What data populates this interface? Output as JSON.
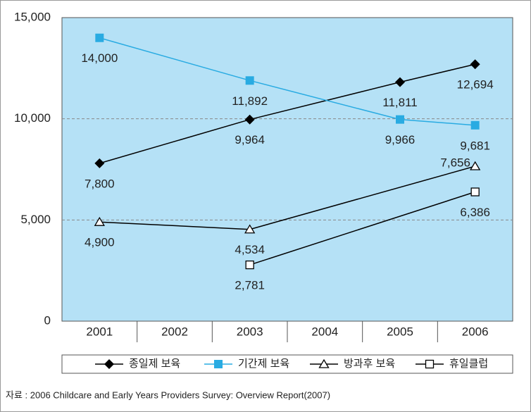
{
  "chart_data": {
    "type": "line",
    "xlim": [
      2000.5,
      2006.5
    ],
    "xticks": [
      2001,
      2002,
      2003,
      2004,
      2005,
      2006
    ],
    "ylim": [
      0,
      15000
    ],
    "yticks": [
      {
        "value": 0,
        "label": "0"
      },
      {
        "value": 5000,
        "label": "5,000"
      },
      {
        "value": 10000,
        "label": "10,000"
      },
      {
        "value": 15000,
        "label": "15,000"
      }
    ],
    "grid": true,
    "series": [
      {
        "name": "종일제 보육",
        "color": "#000000",
        "marker": "diamond",
        "x": [
          2001,
          2003,
          2005,
          2006
        ],
        "values": [
          7800,
          9964,
          11811,
          12694
        ],
        "value_labels": [
          "7,800",
          "9,964",
          "11,811",
          "12,694"
        ]
      },
      {
        "name": "기간제 보육",
        "color": "#29abe2",
        "marker": "square-filled",
        "x": [
          2001,
          2003,
          2005,
          2006
        ],
        "values": [
          14000,
          11892,
          9966,
          9681
        ],
        "value_labels": [
          "14,000",
          "11,892",
          "9,966",
          "9,681"
        ]
      },
      {
        "name": "방과후 보육",
        "color": "#000000",
        "marker": "triangle-open",
        "x": [
          2001,
          2003,
          2006
        ],
        "values": [
          4900,
          4534,
          7656
        ],
        "value_labels": [
          "4,900",
          "4,534",
          "7,656"
        ]
      },
      {
        "name": "휴일클럽",
        "color": "#000000",
        "marker": "square-open",
        "x": [
          2003,
          2006
        ],
        "values": [
          2781,
          6386
        ],
        "value_labels": [
          "2,781",
          "6,386"
        ]
      }
    ],
    "legend": "bottom",
    "source": "자료 : 2006 Childcare and Early Years Providers Survey: Overview Report(2007)"
  }
}
